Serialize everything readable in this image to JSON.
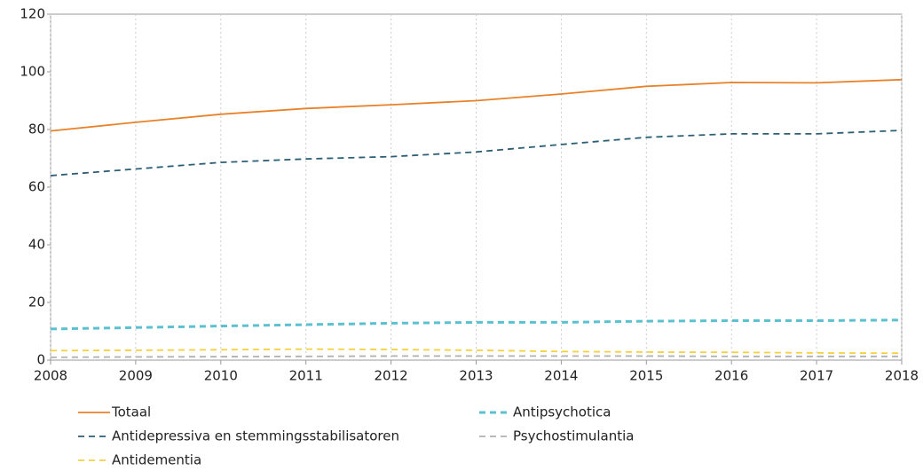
{
  "chart_data": {
    "type": "line",
    "x": [
      2008,
      2009,
      2010,
      2011,
      2012,
      2013,
      2014,
      2015,
      2016,
      2017,
      2018
    ],
    "xlim": [
      2008,
      2018
    ],
    "xticks": [
      2008,
      2009,
      2010,
      2011,
      2012,
      2013,
      2014,
      2015,
      2016,
      2017,
      2018
    ],
    "ylim": [
      0,
      120
    ],
    "yticks": [
      0,
      20,
      40,
      60,
      80,
      100,
      120
    ],
    "grid": true,
    "legend": "bottom",
    "series": [
      {
        "name": "Totaal",
        "color": "#e8822a",
        "style": "solid",
        "values": [
          79.5,
          82.5,
          85.3,
          87.3,
          88.6,
          90.0,
          92.3,
          95.0,
          96.3,
          96.2,
          97.3
        ]
      },
      {
        "name": "Antipsychotica",
        "color": "#5bc0d0",
        "style": "dashed",
        "values": [
          10.8,
          11.3,
          11.8,
          12.3,
          12.8,
          13.1,
          13.1,
          13.5,
          13.7,
          13.7,
          13.9
        ]
      },
      {
        "name": "Antidepressiva en stemmingsstabilisatoren",
        "color": "#2b5f75",
        "style": "dashed",
        "values": [
          64.0,
          66.3,
          68.6,
          69.8,
          70.6,
          72.2,
          74.8,
          77.3,
          78.5,
          78.5,
          79.7
        ]
      },
      {
        "name": "Psychostimulantia",
        "color": "#b0b0b0",
        "style": "dashed",
        "values": [
          1.0,
          1.1,
          1.2,
          1.3,
          1.4,
          1.4,
          1.4,
          1.4,
          1.3,
          1.3,
          1.3
        ]
      },
      {
        "name": "Antidementia",
        "color": "#f5d040",
        "style": "dashed",
        "values": [
          3.3,
          3.4,
          3.6,
          3.8,
          3.7,
          3.4,
          3.0,
          2.8,
          2.7,
          2.5,
          2.4
        ]
      }
    ]
  }
}
